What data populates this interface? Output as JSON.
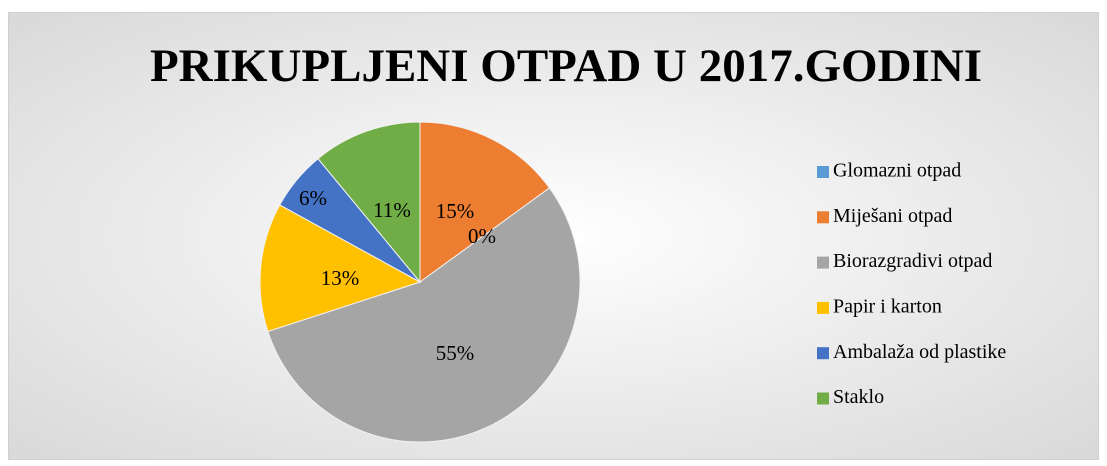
{
  "chart_data": {
    "type": "pie",
    "title": "PRIKUPLJENI OTPAD U 2017.GODINI",
    "categories": [
      "Glomazni otpad",
      "Miješani otpad",
      "Biorazgradivi otpad",
      "Papir i karton",
      "Ambalaža od plastike",
      "Staklo"
    ],
    "values": [
      0,
      15,
      55,
      13,
      6,
      11
    ],
    "value_labels": [
      "0%",
      "15%",
      "55%",
      "13%",
      "6%",
      "11%"
    ],
    "colors": [
      "#5b9bd5",
      "#ed7d31",
      "#a5a5a5",
      "#ffc000",
      "#4472c4",
      "#70ad47"
    ],
    "legend": "right"
  }
}
